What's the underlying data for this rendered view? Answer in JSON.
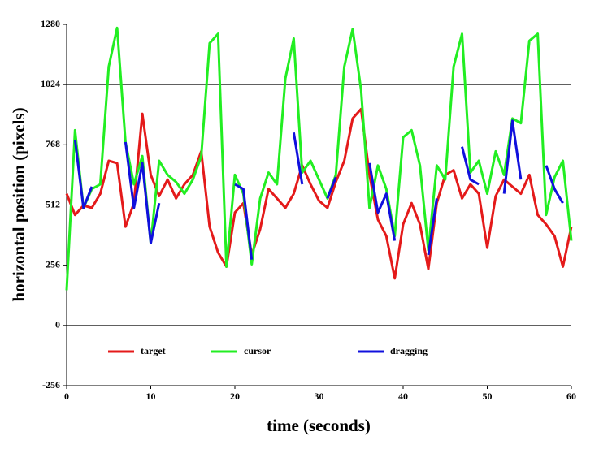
{
  "chart_data": {
    "type": "line",
    "xlabel": "time (seconds)",
    "ylabel": "horizontal position (pixels)",
    "x": [
      0,
      1,
      2,
      3,
      4,
      5,
      6,
      7,
      8,
      9,
      10,
      11,
      12,
      13,
      14,
      15,
      16,
      17,
      18,
      19,
      20,
      21,
      22,
      23,
      24,
      25,
      26,
      27,
      28,
      29,
      30,
      31,
      32,
      33,
      34,
      35,
      36,
      37,
      38,
      39,
      40,
      41,
      42,
      43,
      44,
      45,
      46,
      47,
      48,
      49,
      50,
      51,
      52,
      53,
      54,
      55,
      56,
      57,
      58,
      59,
      60
    ],
    "series": [
      {
        "name": "target",
        "color": "#e41a1a",
        "values": [
          560,
          470,
          510,
          500,
          560,
          700,
          690,
          420,
          520,
          900,
          640,
          550,
          620,
          540,
          600,
          640,
          740,
          420,
          310,
          250,
          480,
          520,
          300,
          410,
          580,
          540,
          500,
          560,
          680,
          600,
          530,
          500,
          610,
          700,
          880,
          920,
          640,
          450,
          380,
          200,
          430,
          520,
          430,
          240,
          520,
          640,
          660,
          540,
          600,
          560,
          330,
          550,
          620,
          590,
          560,
          640,
          470,
          430,
          380,
          250,
          420
        ]
      },
      {
        "name": "cursor",
        "color": "#22ee22",
        "values": [
          150,
          830,
          500,
          580,
          600,
          1100,
          1265,
          780,
          600,
          720,
          350,
          700,
          640,
          610,
          560,
          620,
          720,
          1200,
          1240,
          250,
          640,
          560,
          260,
          540,
          650,
          600,
          1050,
          1220,
          650,
          700,
          620,
          540,
          640,
          1100,
          1260,
          1000,
          500,
          680,
          580,
          380,
          800,
          830,
          680,
          320,
          680,
          620,
          1100,
          1240,
          650,
          700,
          560,
          740,
          640,
          880,
          860,
          1210,
          1240,
          470,
          630,
          700,
          360
        ]
      },
      {
        "name": "dragging",
        "color": "#1010dd",
        "values": [
          null,
          790,
          500,
          590,
          null,
          null,
          null,
          780,
          500,
          690,
          350,
          520,
          null,
          null,
          null,
          null,
          null,
          null,
          null,
          null,
          600,
          580,
          280,
          null,
          null,
          null,
          null,
          820,
          600,
          null,
          null,
          540,
          630,
          null,
          null,
          null,
          690,
          480,
          560,
          360,
          null,
          null,
          null,
          300,
          540,
          null,
          null,
          760,
          620,
          600,
          null,
          null,
          560,
          870,
          620,
          null,
          null,
          680,
          580,
          520,
          null
        ]
      }
    ],
    "xlim": [
      0,
      60
    ],
    "xticks": [
      0,
      10,
      20,
      30,
      40,
      50,
      60
    ],
    "ylim": [
      -256,
      1280
    ],
    "yticks": [
      -256,
      0,
      256,
      512,
      768,
      1024,
      1280
    ],
    "hlines": [
      0,
      1024
    ],
    "legend": "lower center"
  }
}
